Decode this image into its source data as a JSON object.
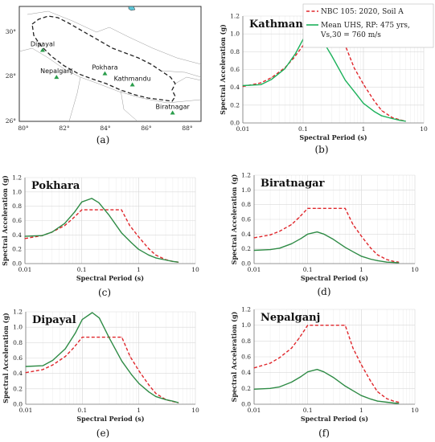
{
  "map": {
    "caption": "(a)",
    "x_ticks": [
      "80°",
      "82°",
      "84°",
      "86°",
      "88°"
    ],
    "y_ticks": [
      "30°",
      "28°",
      "26°"
    ],
    "cities": [
      {
        "name": "Dipayal",
        "lon": 80.94,
        "lat": 29.26
      },
      {
        "name": "Nepalganj",
        "lon": 81.62,
        "lat": 28.05
      },
      {
        "name": "Pokhara",
        "lon": 83.98,
        "lat": 28.21
      },
      {
        "name": "Kathmandu",
        "lon": 85.32,
        "lat": 27.71
      },
      {
        "name": "Biratnagar",
        "lon": 87.28,
        "lat": 26.45
      }
    ]
  },
  "legend": {
    "nbc_label": "NBC 105: 2020, Soil A",
    "uhs_label_line1": "Mean UHS, RP: 475 yrs,",
    "uhs_label_line2": "Vs,30 = 760 m/s"
  },
  "colors": {
    "nbc": "#e0262b",
    "uhs_b": "#1bb15a",
    "uhs_other": "#2e8b45",
    "grid": "#d9d9d9"
  },
  "chart_data": [
    {
      "type": "line",
      "panel": "b",
      "caption": "(b)",
      "title": "Kathmandu",
      "xlabel": "Spectral Period (s)",
      "ylabel": "Spectral Acceleration (g)",
      "xscale": "log",
      "xlim": [
        0.01,
        10
      ],
      "ylim": [
        0,
        1.2
      ],
      "x_ticks": [
        "0.01",
        "0.1",
        "1",
        "10"
      ],
      "y_ticks": [
        "0.0",
        "0.2",
        "0.4",
        "0.6",
        "0.8",
        "1.0",
        "1.2"
      ],
      "series": [
        {
          "name": "NBC 105: 2020, Soil A",
          "x": [
            0.01,
            0.02,
            0.03,
            0.05,
            0.07,
            0.1,
            0.15,
            0.5,
            0.7,
            1,
            1.5,
            2,
            3,
            4,
            5
          ],
          "y": [
            0.41,
            0.45,
            0.51,
            0.62,
            0.73,
            0.87,
            0.87,
            0.87,
            0.62,
            0.435,
            0.25,
            0.14,
            0.06,
            0.035,
            0.02
          ]
        },
        {
          "name": "Mean UHS, RP: 475 yrs, Vs,30 = 760 m/s",
          "x": [
            0.01,
            0.02,
            0.03,
            0.05,
            0.075,
            0.1,
            0.15,
            0.2,
            0.3,
            0.5,
            0.75,
            1,
            1.5,
            2,
            3,
            4,
            5
          ],
          "y": [
            0.42,
            0.43,
            0.49,
            0.61,
            0.78,
            0.94,
            1.01,
            0.95,
            0.75,
            0.48,
            0.33,
            0.22,
            0.13,
            0.08,
            0.05,
            0.03,
            0.02
          ]
        }
      ]
    },
    {
      "type": "line",
      "panel": "c",
      "caption": "(c)",
      "title": "Pokhara",
      "xlabel": "Spectral Period (s)",
      "ylabel": "Spectral Acceleration (g)",
      "xscale": "log",
      "xlim": [
        0.01,
        10
      ],
      "ylim": [
        0,
        1.2
      ],
      "x_ticks": [
        "0.01",
        "0.1",
        "1",
        "10"
      ],
      "y_ticks": [
        "0.0",
        "0.2",
        "0.4",
        "0.6",
        "0.8",
        "1.0",
        "1.2"
      ],
      "series": [
        {
          "name": "NBC 105: 2020, Soil A",
          "x": [
            0.01,
            0.02,
            0.03,
            0.05,
            0.07,
            0.1,
            0.15,
            0.5,
            0.7,
            1,
            1.5,
            2,
            3,
            4,
            5
          ],
          "y": [
            0.35,
            0.39,
            0.44,
            0.53,
            0.63,
            0.75,
            0.75,
            0.75,
            0.53,
            0.375,
            0.21,
            0.12,
            0.055,
            0.03,
            0.02
          ]
        },
        {
          "name": "Mean UHS, RP: 475 yrs, Vs,30 = 760 m/s",
          "x": [
            0.01,
            0.02,
            0.03,
            0.05,
            0.075,
            0.1,
            0.15,
            0.2,
            0.3,
            0.5,
            0.75,
            1,
            1.5,
            2,
            3,
            4,
            5
          ],
          "y": [
            0.38,
            0.39,
            0.44,
            0.56,
            0.72,
            0.86,
            0.91,
            0.85,
            0.68,
            0.43,
            0.29,
            0.2,
            0.12,
            0.08,
            0.05,
            0.03,
            0.02
          ]
        }
      ]
    },
    {
      "type": "line",
      "panel": "d",
      "caption": "(d)",
      "title": "Biratnagar",
      "xlabel": "Spectral Period (s)",
      "ylabel": "Spectral Acceleration (g)",
      "xscale": "log",
      "xlim": [
        0.01,
        10
      ],
      "ylim": [
        0,
        1.2
      ],
      "x_ticks": [
        "0.01",
        "0.1",
        "1",
        "10"
      ],
      "y_ticks": [
        "0.0",
        "0.2",
        "0.4",
        "0.6",
        "0.8",
        "1.0",
        "1.2"
      ],
      "series": [
        {
          "name": "NBC 105: 2020, Soil A",
          "x": [
            0.01,
            0.02,
            0.03,
            0.05,
            0.07,
            0.1,
            0.15,
            0.5,
            0.7,
            1,
            1.5,
            2,
            3,
            4,
            5
          ],
          "y": [
            0.35,
            0.39,
            0.44,
            0.53,
            0.63,
            0.75,
            0.75,
            0.75,
            0.53,
            0.375,
            0.21,
            0.12,
            0.055,
            0.03,
            0.02
          ]
        },
        {
          "name": "Mean UHS, RP: 475 yrs, Vs,30 = 760 m/s",
          "x": [
            0.01,
            0.02,
            0.03,
            0.05,
            0.075,
            0.1,
            0.15,
            0.2,
            0.3,
            0.5,
            0.75,
            1,
            1.5,
            2,
            3,
            4,
            5
          ],
          "y": [
            0.18,
            0.19,
            0.21,
            0.27,
            0.34,
            0.4,
            0.43,
            0.4,
            0.33,
            0.22,
            0.15,
            0.1,
            0.06,
            0.04,
            0.02,
            0.015,
            0.01
          ]
        }
      ]
    },
    {
      "type": "line",
      "panel": "e",
      "caption": "(e)",
      "title": "Dipayal",
      "xlabel": "Spectral Period (s)",
      "ylabel": "Spectral Acceleration (g)",
      "xscale": "log",
      "xlim": [
        0.01,
        10
      ],
      "ylim": [
        0,
        1.2
      ],
      "x_ticks": [
        "0.01",
        "0.1",
        "1",
        "10"
      ],
      "y_ticks": [
        "0.0",
        "0.2",
        "0.4",
        "0.6",
        "0.8",
        "1.0",
        "1.2"
      ],
      "series": [
        {
          "name": "NBC 105: 2020, Soil A",
          "x": [
            0.01,
            0.02,
            0.03,
            0.05,
            0.07,
            0.1,
            0.15,
            0.5,
            0.7,
            1,
            1.5,
            2,
            3,
            4,
            5
          ],
          "y": [
            0.41,
            0.45,
            0.51,
            0.62,
            0.73,
            0.87,
            0.87,
            0.87,
            0.62,
            0.435,
            0.25,
            0.14,
            0.06,
            0.035,
            0.02
          ]
        },
        {
          "name": "Mean UHS, RP: 475 yrs, Vs,30 = 760 m/s",
          "x": [
            0.01,
            0.02,
            0.03,
            0.05,
            0.075,
            0.1,
            0.15,
            0.2,
            0.3,
            0.5,
            0.75,
            1,
            1.5,
            2,
            3,
            4,
            5
          ],
          "y": [
            0.49,
            0.5,
            0.57,
            0.72,
            0.92,
            1.1,
            1.19,
            1.12,
            0.86,
            0.56,
            0.38,
            0.27,
            0.16,
            0.1,
            0.06,
            0.04,
            0.02
          ]
        }
      ]
    },
    {
      "type": "line",
      "panel": "f",
      "caption": "(f)",
      "title": "Nepalganj",
      "xlabel": "Spectral Period (s)",
      "ylabel": "Spectral Acceleration (g)",
      "xscale": "log",
      "xlim": [
        0.01,
        10
      ],
      "ylim": [
        0,
        1.2
      ],
      "x_ticks": [
        "0.01",
        "0.1",
        "1",
        "10"
      ],
      "y_ticks": [
        "0.0",
        "0.2",
        "0.4",
        "0.6",
        "0.8",
        "1.0",
        "1.2"
      ],
      "series": [
        {
          "name": "NBC 105: 2020, Soil A",
          "x": [
            0.01,
            0.02,
            0.03,
            0.05,
            0.07,
            0.1,
            0.15,
            0.5,
            0.7,
            1,
            1.5,
            2,
            3,
            4,
            5
          ],
          "y": [
            0.46,
            0.52,
            0.59,
            0.71,
            0.84,
            1.0,
            1.0,
            1.0,
            0.71,
            0.5,
            0.29,
            0.16,
            0.07,
            0.04,
            0.025
          ]
        },
        {
          "name": "Mean UHS, RP: 475 yrs, Vs,30 = 760 m/s",
          "x": [
            0.01,
            0.02,
            0.03,
            0.05,
            0.075,
            0.1,
            0.15,
            0.2,
            0.3,
            0.5,
            0.75,
            1,
            1.5,
            2,
            3,
            4,
            5
          ],
          "y": [
            0.19,
            0.2,
            0.22,
            0.28,
            0.35,
            0.41,
            0.44,
            0.41,
            0.34,
            0.23,
            0.16,
            0.11,
            0.065,
            0.04,
            0.025,
            0.015,
            0.01
          ]
        }
      ]
    }
  ]
}
